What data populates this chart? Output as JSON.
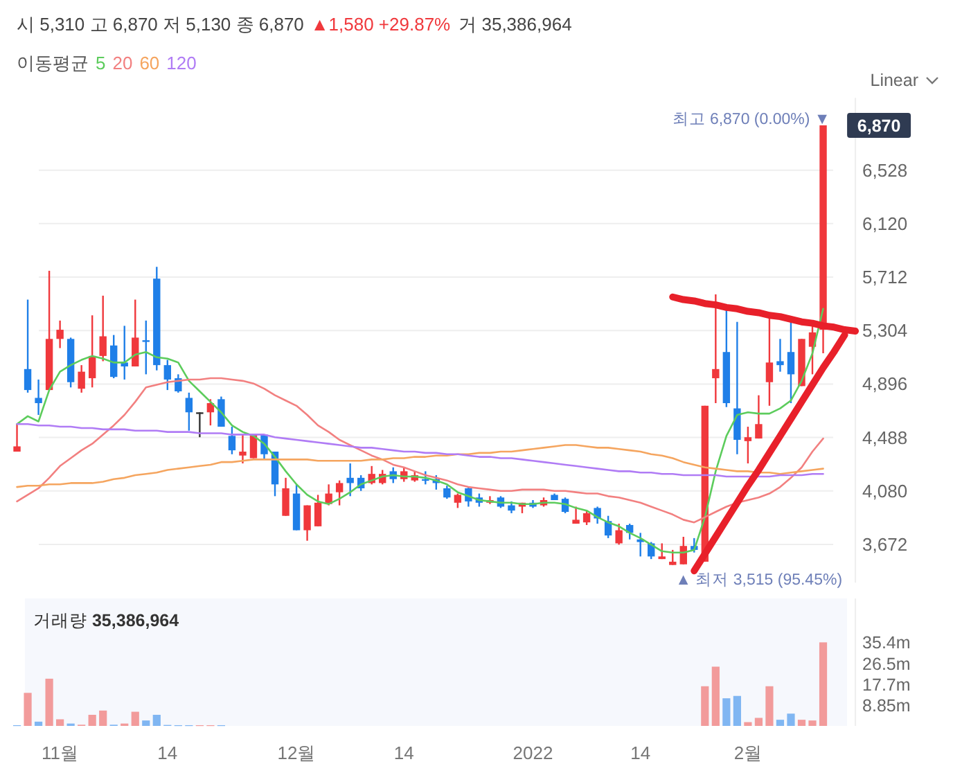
{
  "chart_data": [
    {
      "type": "candlestick",
      "title": "시 5,310 고 6,870 저 5,130 종 6,870",
      "subtitle": "▲1,580 +29.87%",
      "legend_title": "이동평균",
      "legend": "top left",
      "grid": "y",
      "tick_labels": "y",
      "categories": [
        null,
        null,
        null,
        null,
        null,
        null,
        null,
        null,
        null,
        null,
        null,
        null,
        null,
        null,
        null,
        null,
        null,
        null,
        null,
        null,
        null,
        null,
        null,
        null,
        null,
        null,
        null,
        null,
        null,
        null,
        null,
        null,
        null,
        null,
        null,
        null,
        null,
        null,
        null,
        null,
        null,
        null,
        null,
        null,
        null,
        null,
        null,
        null,
        null,
        null,
        null,
        null,
        null,
        null,
        null,
        null,
        null,
        null,
        null,
        null,
        null,
        null,
        null,
        null,
        null,
        null,
        null,
        null,
        null,
        null,
        null,
        null,
        null,
        null,
        null,
        null,
        null,
        null,
        null
      ],
      "ylim": [
        3380,
        7080
      ],
      "yticks": [
        {
          "value": 3672,
          "label": "3,672"
        },
        {
          "value": 4080,
          "label": "4,080"
        },
        {
          "value": 4488,
          "label": "4,488"
        },
        {
          "value": 4896,
          "label": "4,896"
        },
        {
          "value": 5304,
          "label": "5,304"
        },
        {
          "value": 5712,
          "label": "5,712"
        },
        {
          "value": 6120,
          "label": "6,120"
        },
        {
          "value": 6528,
          "label": "6,528"
        }
      ],
      "ohlc": [
        [
          4380,
          4590,
          4380,
          4420
        ],
        [
          5010,
          5540,
          4830,
          4850
        ],
        [
          4790,
          4930,
          4660,
          4750
        ],
        [
          4850,
          5760,
          4850,
          5240
        ],
        [
          5240,
          5380,
          5170,
          5310
        ],
        [
          5240,
          5250,
          4870,
          4910
        ],
        [
          4860,
          5040,
          4830,
          4990
        ],
        [
          4940,
          5420,
          4870,
          5110
        ],
        [
          5110,
          5570,
          5070,
          5260
        ],
        [
          5190,
          5270,
          4940,
          4950
        ],
        [
          5060,
          5340,
          4930,
          5030
        ],
        [
          5030,
          5540,
          5030,
          5250
        ],
        [
          5230,
          5380,
          4970,
          5220
        ],
        [
          5700,
          5790,
          5000,
          5040
        ],
        [
          5040,
          5080,
          4850,
          4930
        ],
        [
          4940,
          4970,
          4830,
          4840
        ],
        [
          4790,
          4830,
          4540,
          4680
        ],
        [
          4680,
          4680,
          4490,
          4680
        ],
        [
          4680,
          4780,
          4580,
          4750
        ],
        [
          4780,
          4800,
          4570,
          4570
        ],
        [
          4500,
          4570,
          4360,
          4390
        ],
        [
          4350,
          4510,
          4290,
          4380
        ],
        [
          4330,
          4510,
          4330,
          4510
        ],
        [
          4510,
          4510,
          4320,
          4360
        ],
        [
          4380,
          4380,
          4040,
          4130
        ],
        [
          3890,
          4180,
          3890,
          4100
        ],
        [
          4060,
          4130,
          3780,
          3780
        ],
        [
          3780,
          3970,
          3700,
          3970
        ],
        [
          3810,
          4050,
          3810,
          3990
        ],
        [
          3980,
          4130,
          3970,
          4060
        ],
        [
          4070,
          4160,
          3970,
          4140
        ],
        [
          4180,
          4290,
          4040,
          4140
        ],
        [
          4180,
          4200,
          4080,
          4100
        ],
        [
          4140,
          4270,
          4130,
          4210
        ],
        [
          4140,
          4240,
          4130,
          4210
        ],
        [
          4230,
          4260,
          4140,
          4170
        ],
        [
          4170,
          4260,
          4150,
          4230
        ],
        [
          4160,
          4230,
          4150,
          4200
        ],
        [
          4170,
          4230,
          4130,
          4160
        ],
        [
          4170,
          4200,
          4090,
          4140
        ],
        [
          4100,
          4120,
          4020,
          4030
        ],
        [
          3990,
          4060,
          3950,
          4050
        ],
        [
          4100,
          4110,
          3960,
          4000
        ],
        [
          4030,
          4060,
          3960,
          3990
        ],
        [
          3990,
          4040,
          3980,
          4010
        ],
        [
          4030,
          4040,
          3950,
          3960
        ],
        [
          3970,
          4000,
          3910,
          3930
        ],
        [
          3960,
          3990,
          3910,
          3990
        ],
        [
          3990,
          4010,
          3950,
          3960
        ],
        [
          3970,
          4030,
          3960,
          4010
        ],
        [
          4050,
          4060,
          4010,
          4010
        ],
        [
          4020,
          4030,
          3910,
          3920
        ],
        [
          3830,
          3960,
          3830,
          3860
        ],
        [
          3840,
          3930,
          3820,
          3910
        ],
        [
          3950,
          3960,
          3830,
          3870
        ],
        [
          3850,
          3890,
          3720,
          3740
        ],
        [
          3680,
          3830,
          3670,
          3780
        ],
        [
          3820,
          3830,
          3710,
          3760
        ],
        [
          3710,
          3760,
          3580,
          3690
        ],
        [
          3680,
          3690,
          3560,
          3580
        ],
        [
          3560,
          3680,
          3560,
          3580
        ],
        [
          3515,
          3630,
          3515,
          3540
        ],
        [
          3520,
          3730,
          3520,
          3660
        ],
        [
          3660,
          3720,
          3610,
          3630
        ],
        [
          3540,
          4730,
          3540,
          4730
        ],
        [
          4940,
          5580,
          4750,
          5010
        ],
        [
          5140,
          5470,
          4720,
          4750
        ],
        [
          4710,
          5370,
          4360,
          4470
        ],
        [
          4460,
          4570,
          4290,
          4490
        ],
        [
          4480,
          4810,
          4480,
          4590
        ],
        [
          4910,
          5400,
          4730,
          5060
        ],
        [
          5070,
          5240,
          4990,
          5040
        ],
        [
          5140,
          5380,
          4750,
          4970
        ],
        [
          4880,
          5240,
          4880,
          5240
        ],
        [
          5180,
          5360,
          4970,
          5290
        ],
        [
          5310,
          6870,
          5130,
          6870
        ],
        null,
        null,
        null
      ],
      "series": [
        {
          "name": "5",
          "type": "line",
          "color": "#5ccc5c",
          "values": [
            4590,
            4650,
            4610,
            4850,
            4990,
            5040,
            5080,
            5110,
            5090,
            5060,
            5060,
            5120,
            5140,
            5100,
            5090,
            5060,
            4920,
            4840,
            4760,
            4680,
            4580,
            4530,
            4500,
            4440,
            4340,
            4230,
            4130,
            4050,
            4000,
            3980,
            4020,
            4070,
            4130,
            4160,
            4190,
            4200,
            4190,
            4190,
            4180,
            4160,
            4130,
            4070,
            4040,
            4010,
            4000,
            3990,
            3990,
            3980,
            3980,
            3990,
            3990,
            3980,
            3950,
            3930,
            3880,
            3840,
            3810,
            3760,
            3720,
            3670,
            3620,
            3610,
            3610,
            3630,
            3880,
            4230,
            4500,
            4660,
            4680,
            4670,
            4670,
            4710,
            4770,
            4920,
            5130,
            5470,
            null,
            null,
            null
          ]
        },
        {
          "name": "20",
          "type": "line",
          "color": "#f28080",
          "values": [
            4000,
            4050,
            4100,
            4180,
            4270,
            4330,
            4390,
            4440,
            4510,
            4580,
            4660,
            4760,
            4870,
            4890,
            4910,
            4920,
            4930,
            4930,
            4940,
            4940,
            4930,
            4920,
            4900,
            4860,
            4810,
            4770,
            4730,
            4660,
            4580,
            4530,
            4470,
            4430,
            4390,
            4350,
            4320,
            4280,
            4260,
            4230,
            4200,
            4180,
            4160,
            4130,
            4110,
            4100,
            4090,
            4080,
            4080,
            4090,
            4090,
            4090,
            4080,
            4080,
            4070,
            4060,
            4060,
            4040,
            4030,
            4010,
            3990,
            3960,
            3930,
            3900,
            3860,
            3840,
            3880,
            3920,
            3960,
            3990,
            4010,
            4030,
            4060,
            4110,
            4180,
            4260,
            4380,
            4480,
            null,
            null,
            null
          ]
        },
        {
          "name": "60",
          "type": "line",
          "color": "#f5a55f",
          "values": [
            4110,
            4120,
            4120,
            4130,
            4130,
            4140,
            4140,
            4140,
            4150,
            4170,
            4180,
            4200,
            4210,
            4220,
            4240,
            4250,
            4260,
            4270,
            4280,
            4300,
            4300,
            4310,
            4320,
            4320,
            4320,
            4320,
            4320,
            4320,
            4310,
            4310,
            4310,
            4310,
            4310,
            4320,
            4320,
            4330,
            4330,
            4340,
            4340,
            4350,
            4350,
            4360,
            4360,
            4370,
            4370,
            4380,
            4380,
            4390,
            4400,
            4410,
            4420,
            4430,
            4430,
            4420,
            4410,
            4410,
            4400,
            4390,
            4380,
            4360,
            4350,
            4330,
            4300,
            4280,
            4260,
            4250,
            4240,
            4230,
            4230,
            4220,
            4220,
            4210,
            4220,
            4230,
            4240,
            4250,
            null,
            null,
            null
          ]
        },
        {
          "name": "120",
          "type": "line",
          "color": "#b07cf5",
          "values": [
            4590,
            4590,
            4580,
            4580,
            4570,
            4570,
            4560,
            4560,
            4550,
            4550,
            4550,
            4540,
            4540,
            4540,
            4530,
            4530,
            4530,
            4520,
            4520,
            4520,
            4510,
            4510,
            4510,
            4510,
            4490,
            4480,
            4470,
            4460,
            4450,
            4440,
            4430,
            4420,
            4410,
            4410,
            4400,
            4390,
            4380,
            4380,
            4370,
            4370,
            4360,
            4360,
            4350,
            4340,
            4340,
            4330,
            4330,
            4320,
            4310,
            4300,
            4290,
            4280,
            4270,
            4260,
            4250,
            4240,
            4230,
            4230,
            4220,
            4220,
            4210,
            4210,
            4200,
            4200,
            4200,
            4200,
            4190,
            4190,
            4190,
            4190,
            4190,
            4200,
            4200,
            4200,
            4210,
            4210,
            null,
            null,
            null
          ]
        },
        {
          "type": "line",
          "color": "#e8202a",
          "values": [
            null,
            null,
            null,
            null,
            null,
            null,
            null,
            null,
            null,
            null,
            null,
            null,
            null,
            null,
            null,
            null,
            null,
            null,
            null,
            null,
            null,
            null,
            null,
            null,
            null,
            null,
            null,
            null,
            null,
            null,
            null,
            null,
            null,
            null,
            null,
            null,
            null,
            null,
            null,
            null,
            null,
            null,
            null,
            null,
            null,
            null,
            null,
            null,
            null,
            null,
            null,
            null,
            null,
            null,
            null,
            null,
            null,
            null,
            null,
            null,
            null,
            5560,
            5540,
            5530,
            5510,
            5500,
            5480,
            5470,
            5450,
            5440,
            5420,
            5410,
            5390,
            5370,
            5360,
            5340,
            5330,
            5310,
            5300
          ]
        },
        {
          "type": "line",
          "color": "#e8202a",
          "values": [
            null,
            null,
            null,
            null,
            null,
            null,
            null,
            null,
            null,
            null,
            null,
            null,
            null,
            null,
            null,
            null,
            null,
            null,
            null,
            null,
            null,
            null,
            null,
            null,
            null,
            null,
            null,
            null,
            null,
            null,
            null,
            null,
            null,
            null,
            null,
            null,
            null,
            null,
            null,
            null,
            null,
            null,
            null,
            null,
            null,
            null,
            null,
            null,
            null,
            null,
            null,
            null,
            null,
            null,
            null,
            null,
            null,
            null,
            null,
            null,
            null,
            null,
            null,
            3470,
            3600,
            3730,
            3860,
            3990,
            4120,
            4240,
            4370,
            4500,
            4630,
            4760,
            4890,
            5020,
            5140,
            5270,
            null
          ]
        }
      ],
      "annotations": [
        "거 35,386,964",
        "Linear",
        "6,870",
        "최고 6,870 (0.00%) ▼",
        "▲ 최저 3,515 (95.45%)"
      ]
    },
    {
      "type": "bar",
      "title": "거래량 **35,386,964**",
      "ylim": [
        0,
        54
      ],
      "categories": [
        null,
        null,
        null,
        null,
        "11월",
        null,
        null,
        null,
        null,
        null,
        null,
        null,
        null,
        null,
        "14",
        null,
        null,
        null,
        null,
        null,
        null,
        null,
        null,
        null,
        null,
        null,
        "12월",
        null,
        null,
        null,
        null,
        null,
        null,
        null,
        null,
        null,
        "14",
        null,
        null,
        null,
        null,
        null,
        null,
        null,
        null,
        null,
        null,
        null,
        "2022",
        null,
        null,
        null,
        null,
        null,
        null,
        null,
        null,
        null,
        "14",
        null,
        null,
        null,
        null,
        null,
        null,
        null,
        null,
        null,
        "2월",
        null,
        null,
        null,
        null,
        null,
        null,
        null,
        null,
        null,
        null
      ],
      "yticks": [
        {
          "value": 8.85,
          "label": "8.85m"
        },
        {
          "value": 17.7,
          "label": "17.7m"
        },
        {
          "value": 26.5,
          "label": "26.5m"
        },
        {
          "value": 35.4,
          "label": "35.4m"
        }
      ],
      "values": [
        0.3,
        14.0,
        1.8,
        20.0,
        2.8,
        1.0,
        0.5,
        4.7,
        6.5,
        0.5,
        1.0,
        6.0,
        2.3,
        4.7,
        0.4,
        0.3,
        0.3,
        0.3,
        0.3,
        0.3,
        null,
        null,
        null,
        null,
        null,
        null,
        null,
        null,
        null,
        null,
        null,
        null,
        null,
        null,
        null,
        null,
        null,
        null,
        null,
        null,
        null,
        null,
        null,
        null,
        null,
        null,
        null,
        null,
        null,
        null,
        null,
        null,
        null,
        null,
        null,
        null,
        null,
        null,
        null,
        null,
        null,
        null,
        null,
        null,
        16.8,
        25.1,
        11.7,
        12.7,
        1.6,
        3.4,
        16.8,
        2.6,
        5.2,
        2.6,
        2.3,
        35.4,
        null,
        null,
        null
      ],
      "colors": [
        "#80b6f2",
        "#f29b9b",
        "#80b6f2",
        "#f29b9b",
        "#f29b9b",
        "#80b6f2",
        "#f29b9b",
        "#f29b9b",
        "#f29b9b",
        "#80b6f2",
        "#f29b9b",
        "#f29b9b",
        "#80b6f2",
        "#80b6f2",
        "#80b6f2",
        "#80b6f2",
        "#80b6f2",
        "#f29b9b",
        "#f29b9b",
        "#80b6f2",
        null,
        null,
        null,
        null,
        null,
        null,
        null,
        null,
        null,
        null,
        null,
        null,
        null,
        null,
        null,
        null,
        null,
        null,
        null,
        null,
        null,
        null,
        null,
        null,
        null,
        null,
        null,
        null,
        null,
        null,
        null,
        null,
        null,
        null,
        null,
        null,
        null,
        null,
        null,
        null,
        null,
        null,
        null,
        null,
        "#f29b9b",
        "#f29b9b",
        "#80b6f2",
        "#80b6f2",
        "#f29b9b",
        "#f29b9b",
        "#f29b9b",
        "#80b6f2",
        "#80b6f2",
        "#f29b9b",
        "#f29b9b",
        "#f29b9b",
        null,
        null,
        null
      ]
    }
  ]
}
